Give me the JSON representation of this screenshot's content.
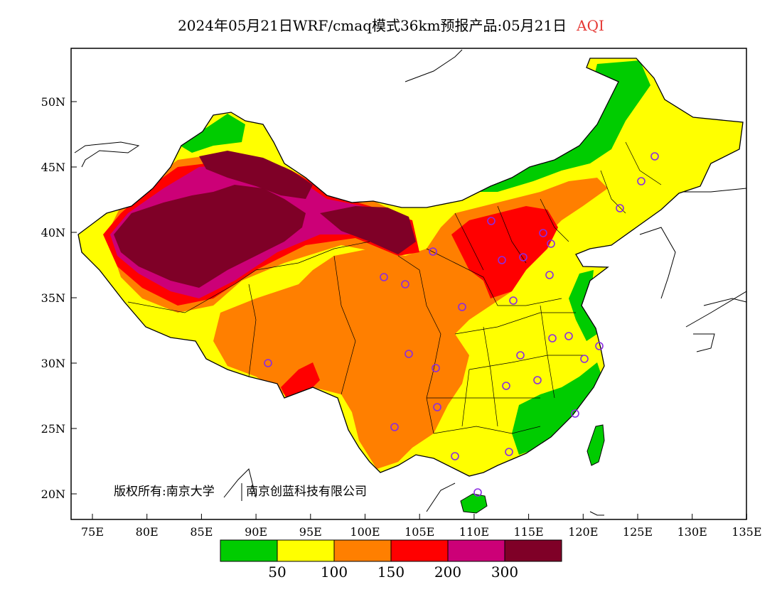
{
  "title": "2024年05月21日WRF/cmaq模式36km预报产品:05月21日",
  "variable": "AQI",
  "copyright": "版权所有:南京大学",
  "copyright2": "南京创蓝科技有限公司",
  "lat_labels": [
    "50N",
    "45N",
    "40N",
    "35N",
    "30N",
    "25N",
    "20N"
  ],
  "lon_labels": [
    "75E",
    "80E",
    "85E",
    "90E",
    "95E",
    "100E",
    "105E",
    "110E",
    "115E",
    "120E",
    "125E",
    "130E",
    "135E"
  ],
  "legend": {
    "colors": [
      "#00cc00",
      "#ffff00",
      "#ff7f00",
      "#ff0000",
      "#cc0077",
      "#7f0027"
    ],
    "breaks": [
      "50",
      "100",
      "150",
      "200",
      "300"
    ]
  },
  "station_color": "#8a2be2"
}
